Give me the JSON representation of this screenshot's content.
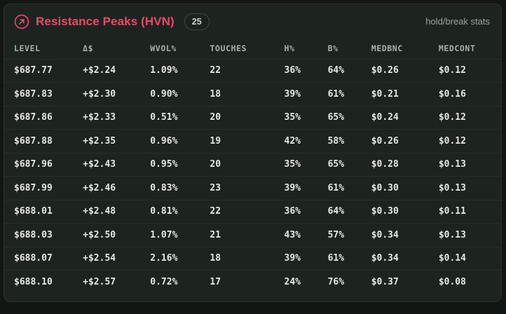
{
  "header": {
    "icon": "arrow-up-right-circle-icon",
    "title": "Resistance Peaks (HVN)",
    "count_badge": "25",
    "right_label": "hold/break stats"
  },
  "table": {
    "columns": [
      "LEVEL",
      "Δ$",
      "WVOL%",
      "TOUCHES",
      "H%",
      "B%",
      "MEDBNC",
      "MEDCONT"
    ],
    "column_keys": [
      "level",
      "delta-usd",
      "wvol-pct",
      "touches",
      "h-pct",
      "b-pct",
      "medbnc",
      "medcont"
    ],
    "rows": [
      [
        "$687.77",
        "+$2.24",
        "1.09%",
        "22",
        "36%",
        "64%",
        "$0.26",
        "$0.12"
      ],
      [
        "$687.83",
        "+$2.30",
        "0.90%",
        "18",
        "39%",
        "61%",
        "$0.21",
        "$0.16"
      ],
      [
        "$687.86",
        "+$2.33",
        "0.51%",
        "20",
        "35%",
        "65%",
        "$0.24",
        "$0.12"
      ],
      [
        "$687.88",
        "+$2.35",
        "0.96%",
        "19",
        "42%",
        "58%",
        "$0.26",
        "$0.12"
      ],
      [
        "$687.96",
        "+$2.43",
        "0.95%",
        "20",
        "35%",
        "65%",
        "$0.28",
        "$0.13"
      ],
      [
        "$687.99",
        "+$2.46",
        "0.83%",
        "23",
        "39%",
        "61%",
        "$0.30",
        "$0.13"
      ],
      [
        "$688.01",
        "+$2.48",
        "0.81%",
        "22",
        "36%",
        "64%",
        "$0.30",
        "$0.11"
      ],
      [
        "$688.03",
        "+$2.50",
        "1.07%",
        "21",
        "43%",
        "57%",
        "$0.34",
        "$0.13"
      ],
      [
        "$688.07",
        "+$2.54",
        "2.16%",
        "18",
        "39%",
        "61%",
        "$0.34",
        "$0.14"
      ],
      [
        "$688.10",
        "+$2.57",
        "0.72%",
        "17",
        "24%",
        "76%",
        "$0.37",
        "$0.08"
      ]
    ]
  },
  "colors": {
    "accent_pink": "#ee4768",
    "page_background": "#121613",
    "panel_background": "#1d2420",
    "row_divider": "#272f28",
    "table_text": "#e4e9e3",
    "muted_text": "#9aa49b"
  }
}
